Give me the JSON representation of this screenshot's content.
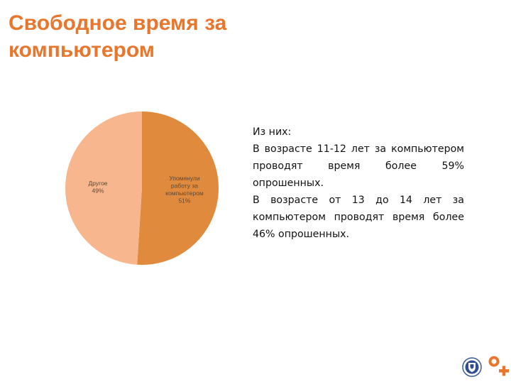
{
  "slide": {
    "title": "Свободное время за компьютером"
  },
  "chart_data": {
    "type": "pie",
    "title": "",
    "slices": [
      {
        "label_lines": [
          "Упомянули",
          "работу за",
          "компьютером"
        ],
        "value_label": "51%",
        "value": 51,
        "color": "#e08a3e"
      },
      {
        "label_lines": [
          "Другое"
        ],
        "value_label": "49%",
        "value": 49,
        "color": "#f7b68e"
      }
    ]
  },
  "text": {
    "lines": [
      "Из них:",
      "В возрасте 11-12 лет за компьютером проводят время более 59% опрошенных.",
      "В возрасте от 13 до 14 лет за компьютером проводят время более 46% опрошенных."
    ]
  },
  "colors": {
    "accent": "#e8762d"
  },
  "icons": [
    "university-seal-icon",
    "brand-mark-icon"
  ]
}
